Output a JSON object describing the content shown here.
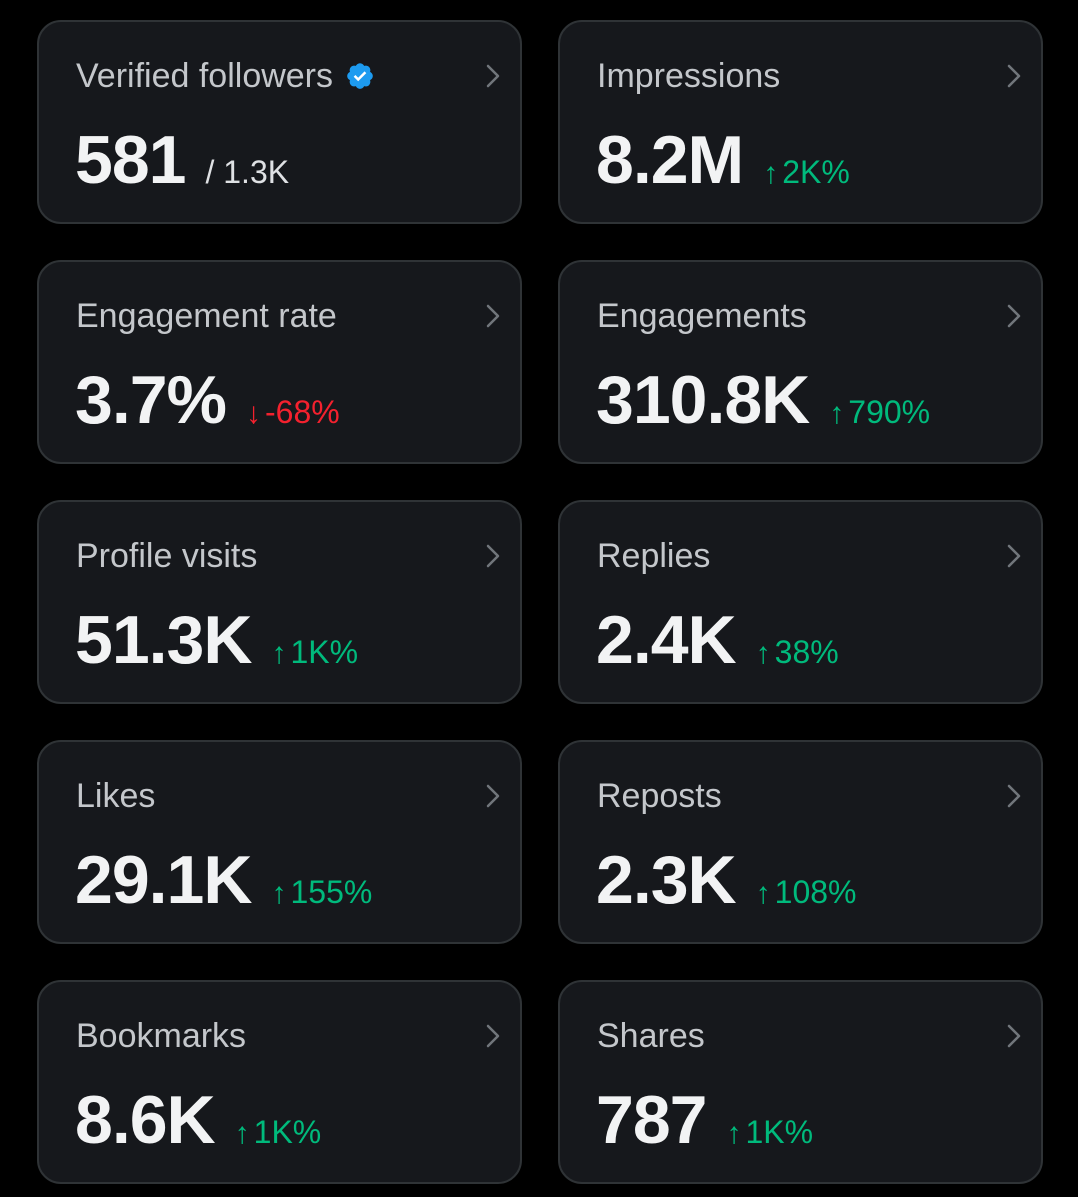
{
  "colors": {
    "background": "#000000",
    "card": "#16181c",
    "border": "#2f3336",
    "positive": "#00ba7c",
    "negative": "#f4212e",
    "verified": "#1d9bf0"
  },
  "cards": [
    {
      "title": "Verified followers",
      "value": "581",
      "sub": "/ 1.3K",
      "icon": "verified-badge-icon"
    },
    {
      "title": "Impressions",
      "value": "8.2M",
      "arrow": "↑",
      "change": "2K%",
      "direction": "up"
    },
    {
      "title": "Engagement rate",
      "value": "3.7%",
      "arrow": "↓",
      "change": "-68%",
      "direction": "down"
    },
    {
      "title": "Engagements",
      "value": "310.8K",
      "arrow": "↑",
      "change": "790%",
      "direction": "up"
    },
    {
      "title": "Profile visits",
      "value": "51.3K",
      "arrow": "↑",
      "change": "1K%",
      "direction": "up"
    },
    {
      "title": "Replies",
      "value": "2.4K",
      "arrow": "↑",
      "change": "38%",
      "direction": "up"
    },
    {
      "title": "Likes",
      "value": "29.1K",
      "arrow": "↑",
      "change": "155%",
      "direction": "up"
    },
    {
      "title": "Reposts",
      "value": "2.3K",
      "arrow": "↑",
      "change": "108%",
      "direction": "up"
    },
    {
      "title": "Bookmarks",
      "value": "8.6K",
      "arrow": "↑",
      "change": "1K%",
      "direction": "up"
    },
    {
      "title": "Shares",
      "value": "787",
      "arrow": "↑",
      "change": "1K%",
      "direction": "up"
    }
  ]
}
